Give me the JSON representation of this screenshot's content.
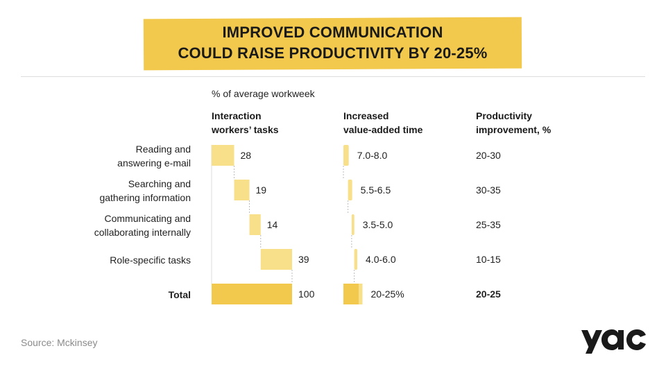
{
  "header": {
    "title_line1": "IMPROVED COMMUNICATION",
    "title_line2": "COULD RAISE PRODUCTIVITY BY 20-25%"
  },
  "subtitle": "% of average workweek",
  "columns": {
    "interaction_line1": "Interaction",
    "interaction_line2": "workers’ tasks",
    "value_line1": "Increased",
    "value_line2": "value-added time",
    "prod_line1": "Productivity",
    "prod_line2": "improvement, %"
  },
  "chart_data": {
    "type": "bar",
    "subtitle": "% of average workweek",
    "categories": [
      "Reading and answering e-mail",
      "Searching and gathering information",
      "Communicating and collaborating internally",
      "Role-specific tasks",
      "Total"
    ],
    "interaction_share": [
      28,
      19,
      14,
      39,
      100
    ],
    "value_added_labels": [
      "7.0-8.0",
      "5.5-6.5",
      "3.5-5.0",
      "4.0-6.0",
      "20-25%"
    ],
    "value_added_ranges": [
      [
        7.0,
        8.0
      ],
      [
        5.5,
        6.5
      ],
      [
        3.5,
        5.0
      ],
      [
        4.0,
        6.0
      ],
      [
        20,
        25
      ]
    ],
    "productivity_improvement": [
      "20-30",
      "30-35",
      "25-35",
      "10-15",
      "20-25"
    ],
    "colors": {
      "segment": "#f8df8a",
      "total": "#f2c94c",
      "banner": "#f2c94c",
      "connector": "#bbbbbb"
    }
  },
  "rows": [
    {
      "label_line1": "Reading and",
      "label_line2": "answering e-mail",
      "share": "28",
      "value_added": "7.0-8.0",
      "productivity": "20-30"
    },
    {
      "label_line1": "Searching and",
      "label_line2": "gathering information",
      "share": "19",
      "value_added": "5.5-6.5",
      "productivity": "30-35"
    },
    {
      "label_line1": "Communicating and",
      "label_line2": "collaborating internally",
      "share": "14",
      "value_added": "3.5-5.0",
      "productivity": "25-35"
    },
    {
      "label_line1": "Role-specific tasks",
      "share": "39",
      "value_added": "4.0-6.0",
      "productivity": "10-15"
    },
    {
      "label_line1": "Total",
      "share": "100",
      "value_added": "20-25%",
      "productivity": "20-25"
    }
  ],
  "footer": {
    "source": "Source: Mckinsey",
    "logo_text": "yac"
  }
}
